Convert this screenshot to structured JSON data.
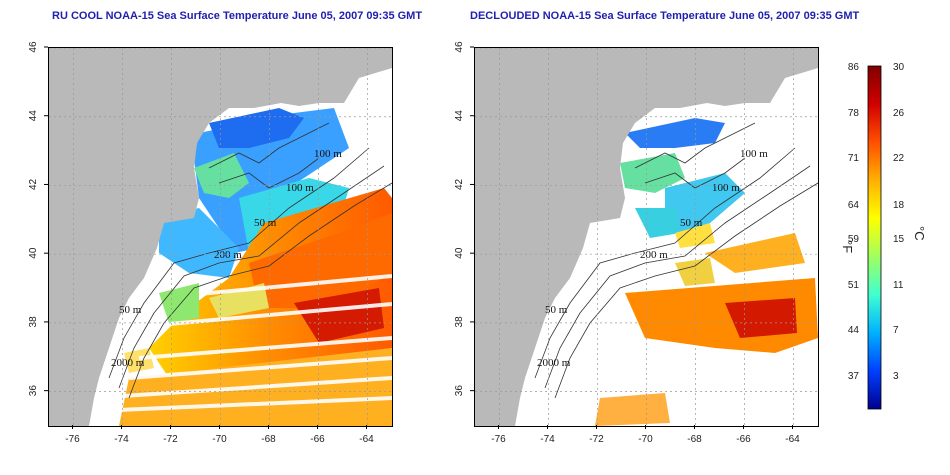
{
  "titles": {
    "left": "RU COOL NOAA-15 Sea Surface Temperature June 05, 2007 09:35 GMT",
    "right": "DECLOUDED NOAA-15 Sea Surface Temperature June 05, 2007 09:35 GMT"
  },
  "map": {
    "lon_range": [
      -77,
      -63
    ],
    "lat_range": [
      35,
      46
    ],
    "lon_ticks": [
      -76,
      -74,
      -72,
      -70,
      -68,
      -66,
      -64
    ],
    "lat_ticks": [
      36,
      38,
      40,
      42,
      44,
      46
    ],
    "lon_tick_labels": [
      "-76",
      "-74",
      "-72",
      "-70",
      "-68",
      "-66",
      "-64"
    ],
    "lat_tick_labels": [
      "36",
      "38",
      "40",
      "42",
      "44",
      "46"
    ],
    "contour_labels": [
      "100 m",
      "100 m",
      "50 m",
      "200 m",
      "50 m",
      "2000 m"
    ],
    "land_color": "#b9b9b9",
    "grid": "dotted"
  },
  "colorbar": {
    "celsius_ticks": [
      "30",
      "26",
      "22",
      "18",
      "15",
      "11",
      "7",
      "3"
    ],
    "fahrenheit_ticks": [
      "86",
      "78",
      "71",
      "64",
      "59",
      "51",
      "44",
      "37"
    ],
    "unit_f": "°F",
    "unit_c": "°C",
    "range_c": [
      0,
      30
    ],
    "colors": [
      "#00008f",
      "#0040ff",
      "#00b0ff",
      "#40ffd0",
      "#a0ff60",
      "#ffff00",
      "#ffb000",
      "#ff5000",
      "#d00000",
      "#800000"
    ]
  }
}
